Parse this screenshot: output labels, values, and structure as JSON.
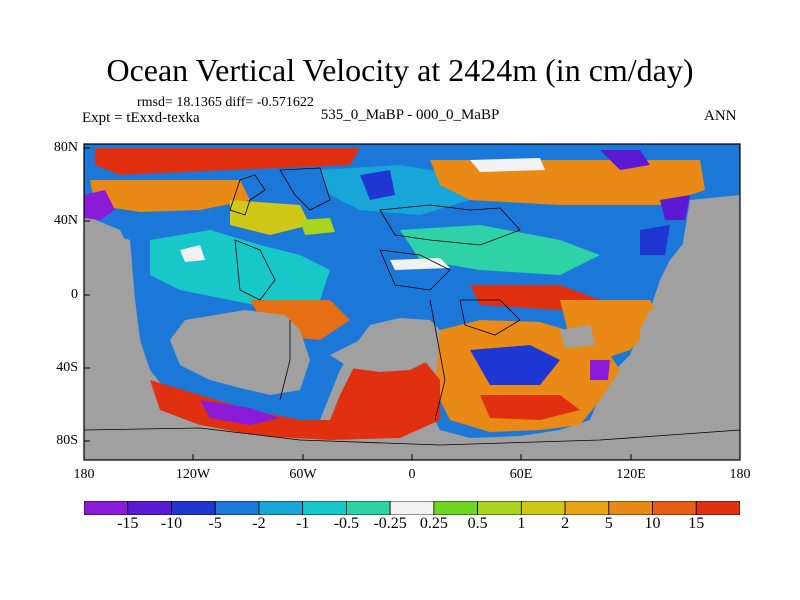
{
  "title": "Ocean Vertical Velocity at 2424m (in cm/day)",
  "stats": "rmsd= 18.1365 diff= -0.571622",
  "experiment": "Expt = tExxd-texka",
  "comparison": "535_0_MaBP - 000_0_MaBP",
  "season": "ANN",
  "map": {
    "land_color": "#a0a0a0",
    "lat_ticks": [
      "80N",
      "40N",
      "0",
      "40S",
      "80S"
    ],
    "lon_ticks": [
      "180",
      "120W",
      "60W",
      "0",
      "60E",
      "120E",
      "180"
    ]
  },
  "colorbar": {
    "colors": [
      "#8a1bd8",
      "#5b19d4",
      "#1f36d2",
      "#1c78d8",
      "#18a6d8",
      "#18c8c8",
      "#2fd2a6",
      "#f2f2f2",
      "#6ed620",
      "#a9d61c",
      "#cfc818",
      "#e6a417",
      "#e88a15",
      "#e65e14",
      "#e0300f"
    ],
    "labels": [
      "-15",
      "-10",
      "-5",
      "-2",
      "-1",
      "-0.5",
      "-0.25",
      "0.25",
      "0.5",
      "1",
      "2",
      "5",
      "10",
      "15"
    ]
  }
}
